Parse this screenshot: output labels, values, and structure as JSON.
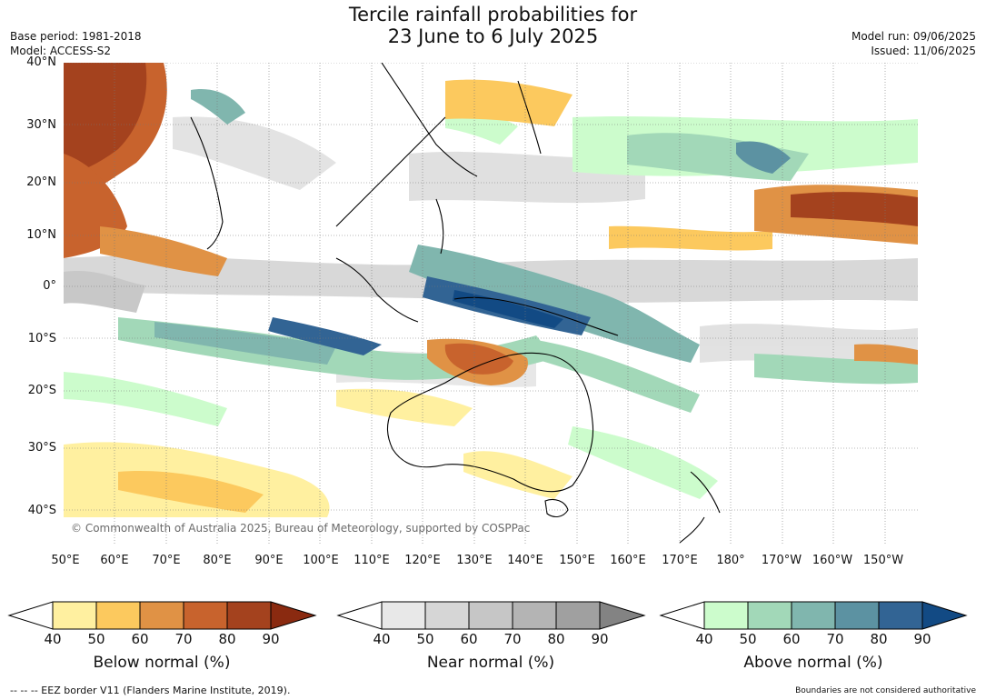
{
  "header": {
    "title_line1": "Tercile rainfall probabilities for",
    "title_line2": "23 June to 6 July 2025",
    "base_period": "Base period: 1981-2018",
    "model": "Model: ACCESS-S2",
    "model_run": "Model run: 09/06/2025",
    "issued": "Issued: 11/06/2025"
  },
  "map": {
    "lat_labels": [
      "40°N",
      "30°N",
      "20°N",
      "10°N",
      "0°",
      "10°S",
      "20°S",
      "30°S",
      "40°S"
    ],
    "lon_labels": [
      "50°E",
      "60°E",
      "70°E",
      "80°E",
      "90°E",
      "100°E",
      "110°E",
      "120°E",
      "130°E",
      "140°E",
      "150°E",
      "160°E",
      "170°E",
      "180°",
      "170°W",
      "160°W",
      "150°W"
    ],
    "copyright": "© Commonwealth of Australia 2025, Bureau of Meteorology, supported by COSPPac"
  },
  "legend": {
    "below": {
      "caption": "Below normal (%)",
      "ticks": [
        "40",
        "50",
        "60",
        "70",
        "80",
        "90"
      ],
      "colors": [
        "#fff0a0",
        "#fcc95e",
        "#e09245",
        "#c8632d",
        "#a4421e",
        "#8a2a10"
      ]
    },
    "near": {
      "caption": "Near normal (%)",
      "ticks": [
        "40",
        "50",
        "60",
        "70",
        "80",
        "90"
      ],
      "colors": [
        "#e8e8e8",
        "#d6d6d6",
        "#c6c6c6",
        "#b4b4b4",
        "#a0a0a0",
        "#838383"
      ]
    },
    "above": {
      "caption": "Above normal (%)",
      "ticks": [
        "40",
        "50",
        "60",
        "70",
        "80",
        "90"
      ],
      "colors": [
        "#ccfccc",
        "#a2d8b8",
        "#80b6ae",
        "#5c92a2",
        "#326494",
        "#124a84"
      ]
    }
  },
  "footer": {
    "eez": "--  --  -- EEZ border V11 (Flanders Marine Institute, 2019).",
    "disclaimer": "Boundaries are not considered authoritative"
  }
}
